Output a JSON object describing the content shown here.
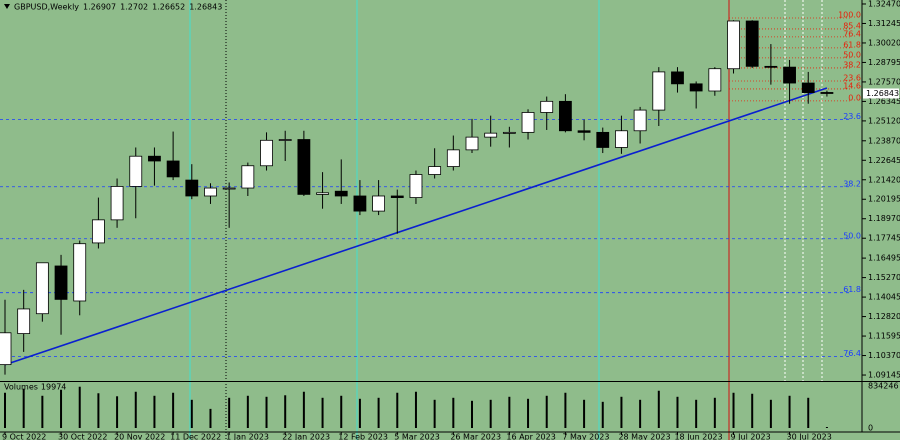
{
  "chart_data": {
    "type": "candlestick",
    "symbol": "GBPUSD,Weekly",
    "categories": [
      "9 Oct 2022",
      null,
      null,
      "30 Oct 2022",
      null,
      null,
      "20 Nov 2022",
      null,
      null,
      "11 Dec 2022",
      null,
      null,
      "1 Jan 2023",
      null,
      null,
      "22 Jan 2023",
      null,
      null,
      "12 Feb 2023",
      null,
      null,
      "5 Mar 2023",
      null,
      null,
      "26 Mar 2023",
      null,
      null,
      "16 Apr 2023",
      null,
      null,
      "7 May 2023",
      null,
      null,
      "28 May 2023",
      null,
      null,
      "18 Jun 2023",
      null,
      null,
      "9 Jul 2023",
      null,
      null,
      "30 Jul 2023",
      null,
      null
    ],
    "open": [
      1.098,
      1.1175,
      1.13,
      1.16,
      1.138,
      1.1745,
      1.189,
      1.21,
      1.229,
      1.226,
      1.214,
      1.204,
      1.2085,
      1.209,
      1.223,
      1.239,
      1.2395,
      1.205,
      1.207,
      1.204,
      1.1945,
      1.204,
      1.203,
      1.2175,
      1.2225,
      1.233,
      1.241,
      1.2435,
      1.244,
      1.2565,
      1.2635,
      1.245,
      1.244,
      1.2345,
      1.245,
      1.258,
      1.282,
      1.2745,
      1.27,
      1.284,
      1.314,
      1.2855,
      1.285,
      1.275,
      1.26907
    ],
    "high": [
      1.1388,
      1.145,
      1.162,
      1.167,
      1.176,
      1.203,
      1.215,
      1.2345,
      1.2345,
      1.2445,
      1.224,
      1.212,
      1.2125,
      1.225,
      1.244,
      1.245,
      1.245,
      1.219,
      1.227,
      1.214,
      1.214,
      1.208,
      1.22,
      1.234,
      1.242,
      1.2525,
      1.2545,
      1.2475,
      1.2585,
      1.2665,
      1.268,
      1.252,
      1.247,
      1.2545,
      1.26,
      1.285,
      1.285,
      1.276,
      1.285,
      1.3145,
      1.3145,
      1.2995,
      1.2895,
      1.282,
      1.2702
    ],
    "low": [
      1.0917,
      1.106,
      1.125,
      1.1168,
      1.129,
      1.171,
      1.184,
      1.19,
      1.2105,
      1.214,
      1.202,
      1.199,
      1.184,
      1.204,
      1.22,
      1.226,
      1.204,
      1.196,
      1.199,
      1.192,
      1.192,
      1.1803,
      1.199,
      1.215,
      1.22,
      1.231,
      1.235,
      1.2345,
      1.2395,
      1.2455,
      1.244,
      1.239,
      1.231,
      1.2305,
      1.237,
      1.248,
      1.269,
      1.259,
      1.267,
      1.281,
      1.2845,
      1.274,
      1.262,
      1.262,
      1.26652
    ],
    "close": [
      1.118,
      1.133,
      1.162,
      1.139,
      1.174,
      1.189,
      1.21,
      1.229,
      1.226,
      1.216,
      1.204,
      1.209,
      1.209,
      1.223,
      1.239,
      1.2395,
      1.205,
      1.206,
      1.204,
      1.1945,
      1.204,
      1.203,
      1.2175,
      1.2225,
      1.233,
      1.241,
      1.2435,
      1.244,
      1.2565,
      1.2635,
      1.245,
      1.244,
      1.2345,
      1.245,
      1.258,
      1.282,
      1.2745,
      1.27,
      1.284,
      1.314,
      1.2855,
      1.285,
      1.275,
      1.269,
      1.26843
    ],
    "ylim": [
      1.0877,
      1.3272
    ],
    "yticks": [
      {
        "value": 1.3247,
        "label": "1.32470"
      },
      1.31245,
      {
        "value": 1.3002,
        "label": "1.30020"
      },
      1.28795,
      {
        "value": 1.2757,
        "label": "1.27570"
      },
      1.26345,
      {
        "value": 1.2512,
        "label": "1.25120"
      },
      {
        "value": 1.2387,
        "label": "1.23870"
      },
      1.22645,
      {
        "value": 1.2142,
        "label": "1.21420"
      },
      1.20195,
      {
        "value": 1.1897,
        "label": "1.18970"
      },
      1.17745,
      1.16495,
      {
        "value": 1.1527,
        "label": "1.15270"
      },
      1.14045,
      {
        "value": 1.1282,
        "label": "1.12820"
      },
      1.11595,
      {
        "value": 1.1037,
        "label": "1.10370"
      },
      1.09145
    ],
    "fib_levels": [
      {
        "value": 1.3159,
        "label": "100.0",
        "color": "#e8200a"
      },
      {
        "value": 1.309,
        "label": "85.4",
        "color": "#e8200a"
      },
      {
        "value": 1.304,
        "label": "76.4",
        "color": "#e8200a"
      },
      {
        "value": 1.2971,
        "label": "61.8",
        "color": "#e8200a"
      },
      {
        "value": 1.2908,
        "label": "50.0",
        "color": "#e8200a"
      },
      {
        "value": 1.2845,
        "label": "38.2",
        "color": "#e8200a"
      },
      {
        "value": 1.2763,
        "label": "23.6",
        "color": "#e8200a"
      },
      {
        "value": 1.2713,
        "label": "14.6",
        "color": "#e8200a"
      },
      {
        "value": 1.2638,
        "label": "0.0",
        "color": "#e8200a"
      },
      {
        "value": 1.252,
        "label": "23.6",
        "color": "#1a3cff"
      },
      {
        "value": 1.2098,
        "label": "38.2",
        "color": "#1a3cff"
      },
      {
        "value": 1.1771,
        "label": "50.0",
        "color": "#1a3cff"
      },
      {
        "value": 1.1432,
        "label": "61.8",
        "color": "#1a3cff"
      },
      {
        "value": 1.103,
        "label": "76.4",
        "color": "#1a3cff"
      }
    ],
    "trendline": {
      "x": [
        0,
        44
      ],
      "y": [
        1.0979,
        1.2719
      ],
      "color": "#0a1fd0"
    },
    "volume": {
      "title": "Volumes",
      "values": [
        700000,
        780000,
        640000,
        760000,
        820000,
        690000,
        630000,
        720000,
        640000,
        700000,
        560000,
        380000,
        600000,
        640000,
        620000,
        650000,
        720000,
        600000,
        640000,
        580000,
        600000,
        700000,
        720000,
        560000,
        600000,
        540000,
        560000,
        620000,
        580000,
        640000,
        700000,
        560000,
        520000,
        620000,
        560000,
        740000,
        620000,
        560000,
        600000,
        700000,
        680000,
        560000,
        640000,
        600000,
        19974
      ],
      "ylim": [
        0,
        834246
      ],
      "yticks": [
        0,
        834246
      ]
    }
  }
}
